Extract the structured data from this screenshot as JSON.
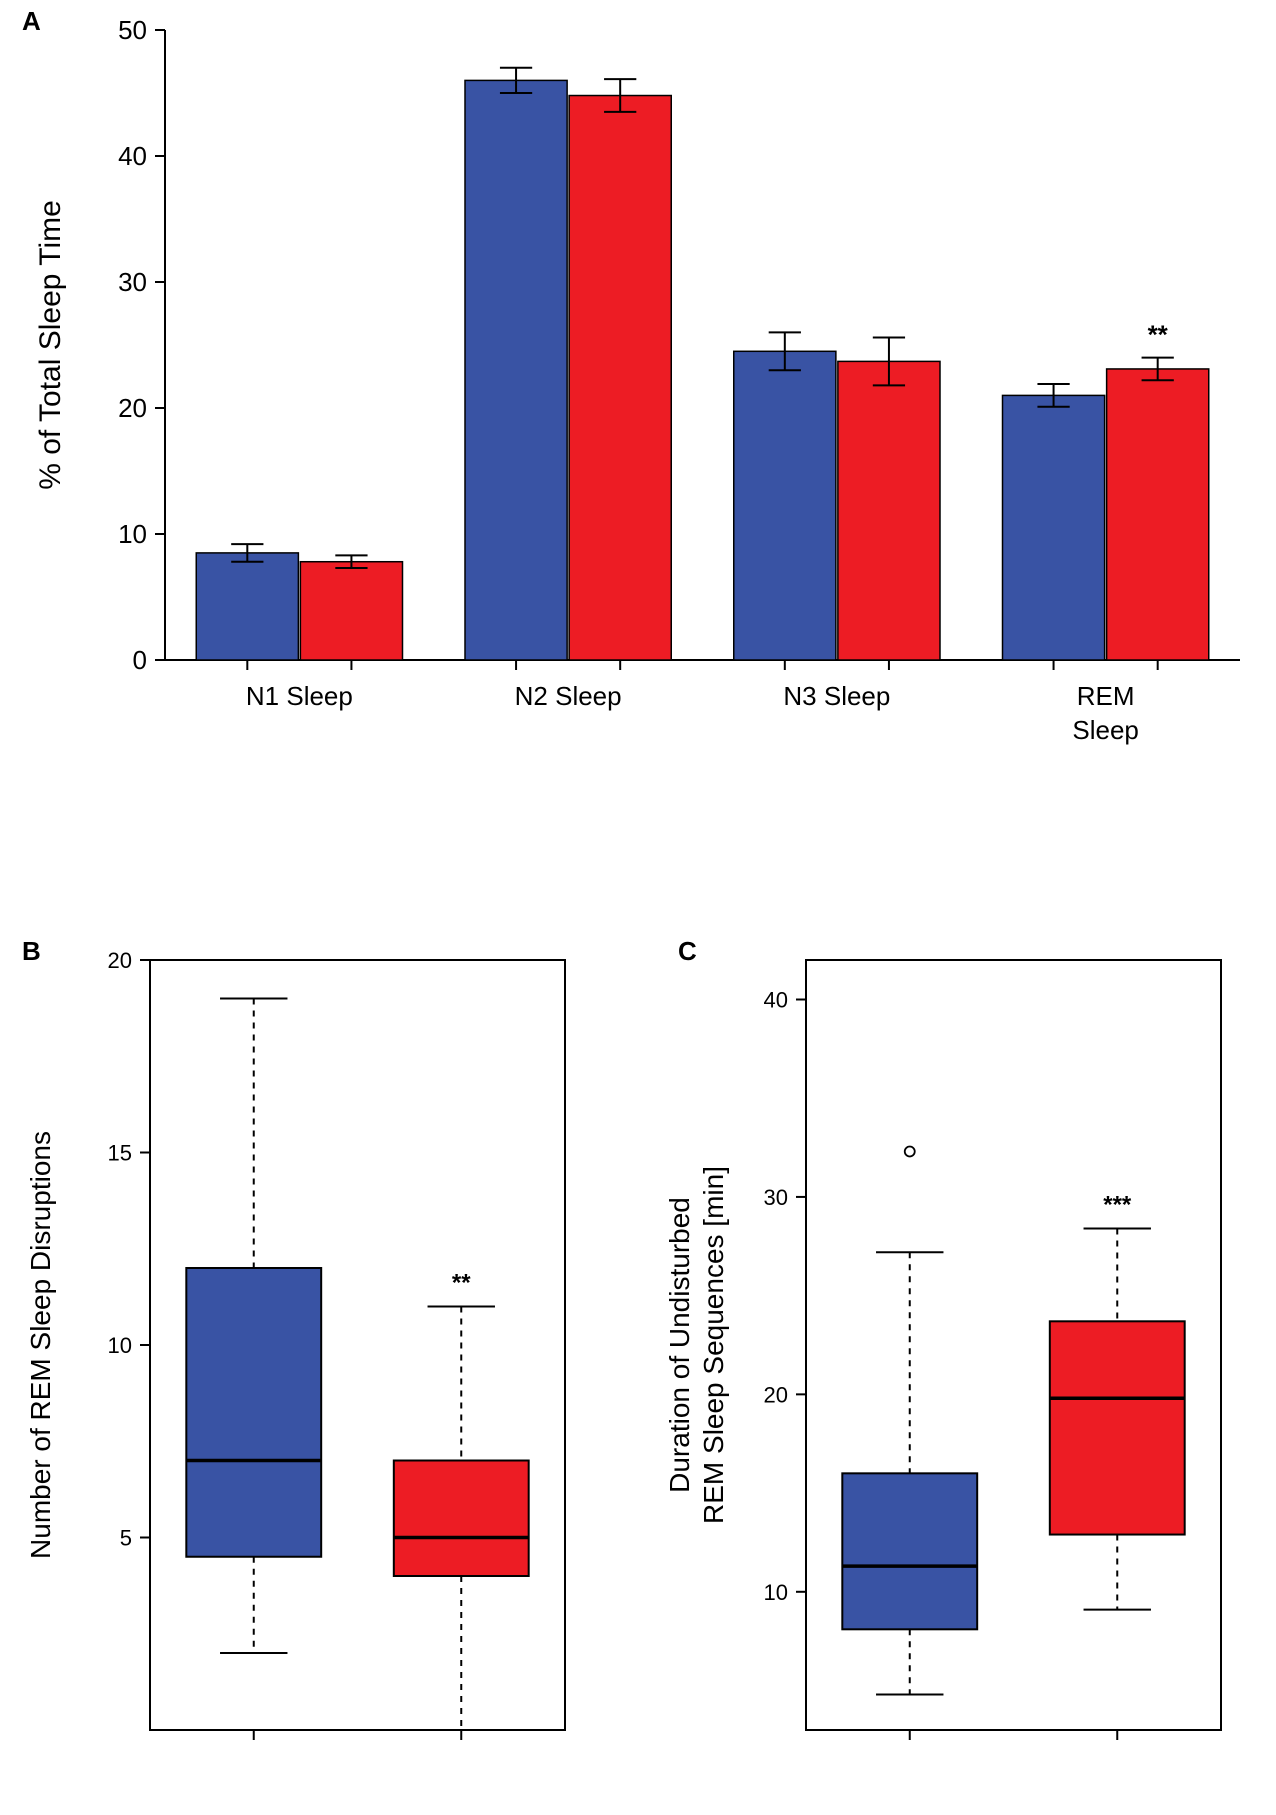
{
  "colors": {
    "blue": "#3953a4",
    "red": "#ed1c24",
    "black": "#000000",
    "white": "#ffffff"
  },
  "panelA": {
    "label": "A",
    "ylabel": "% of Total Sleep Time",
    "ylim": [
      0,
      50
    ],
    "ytick_step": 10,
    "yticks": [
      0,
      10,
      20,
      30,
      40,
      50
    ],
    "categories": [
      "N1 Sleep",
      "N2 Sleep",
      "N3 Sleep",
      "REM\nSleep"
    ],
    "bar_width": 0.38,
    "error_cap_width": 0.12,
    "label_fontsize": 30,
    "tick_fontsize": 26,
    "axis_fontsize": 26,
    "groups": [
      {
        "blue": 8.5,
        "blue_err": 0.7,
        "red": 7.8,
        "red_err": 0.5,
        "sig": null
      },
      {
        "blue": 46.0,
        "blue_err": 1.0,
        "red": 44.8,
        "red_err": 1.3,
        "sig": null
      },
      {
        "blue": 24.5,
        "blue_err": 1.5,
        "red": 23.7,
        "red_err": 1.9,
        "sig": null
      },
      {
        "blue": 21.0,
        "blue_err": 0.9,
        "red": 23.1,
        "red_err": 0.9,
        "sig": "**"
      }
    ]
  },
  "panelB": {
    "label": "B",
    "ylabel": "Number of REM Sleep Disruptions",
    "ylim": [
      0,
      20
    ],
    "yticks": [
      5,
      10,
      15,
      20
    ],
    "tick_fontsize": 22,
    "axis_fontsize": 28,
    "boxes": [
      {
        "color": "blue",
        "min": 2,
        "q1": 4.5,
        "median": 7,
        "q3": 12,
        "max": 19,
        "outliers": [],
        "sig": null
      },
      {
        "color": "red",
        "min": 0,
        "q1": 4,
        "median": 5,
        "q3": 7,
        "max": 11,
        "outliers": [],
        "sig": "**"
      }
    ]
  },
  "panelC": {
    "label": "C",
    "ylabel": "Duration of Undisturbed\nREM Sleep Sequences [min]",
    "ylim": [
      3,
      42
    ],
    "yticks": [
      10,
      20,
      30,
      40
    ],
    "tick_fontsize": 22,
    "axis_fontsize": 28,
    "boxes": [
      {
        "color": "blue",
        "min": 4.8,
        "q1": 8.1,
        "median": 11.3,
        "q3": 16.0,
        "max": 27.2,
        "outliers": [
          32.3
        ],
        "sig": null
      },
      {
        "color": "red",
        "min": 9.1,
        "q1": 12.9,
        "median": 19.8,
        "q3": 23.7,
        "max": 28.4,
        "outliers": [],
        "sig": "***"
      }
    ]
  }
}
